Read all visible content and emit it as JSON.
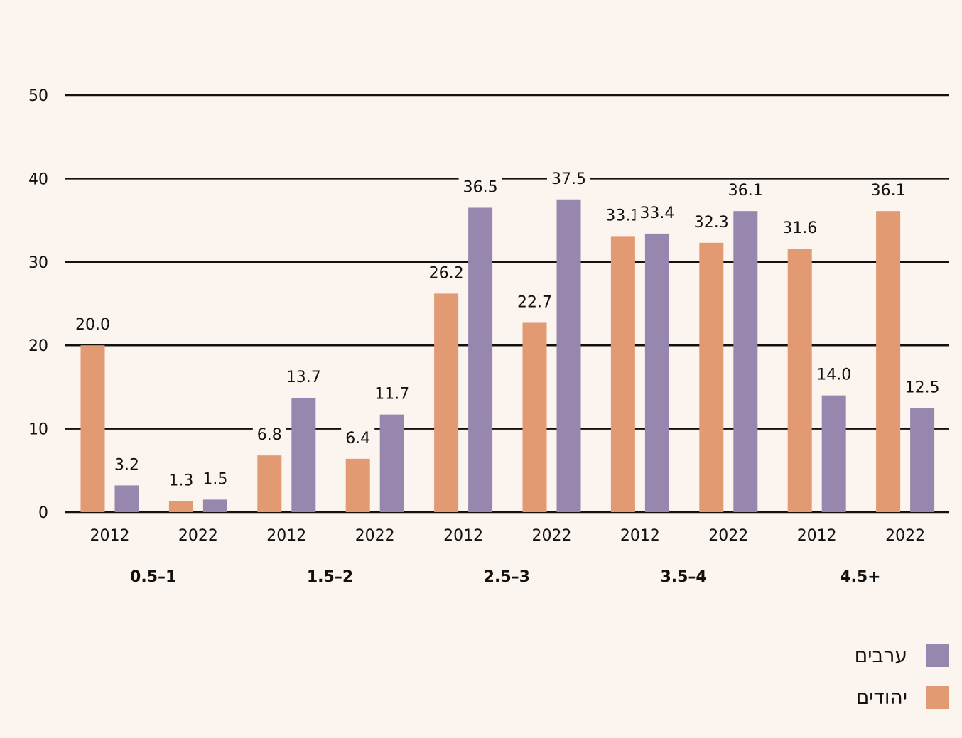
{
  "colors": {
    "jews": "#e19a72",
    "arabs": "#9787af",
    "background": "#fcf4ee"
  },
  "chart_data": {
    "type": "bar",
    "ylim": [
      0,
      50
    ],
    "yticks": [
      0,
      10,
      20,
      30,
      40,
      50
    ],
    "grid": true,
    "legend_position": "bottom-right",
    "groups": [
      {
        "label": "0.5–1",
        "years": [
          "2012",
          "2022"
        ]
      },
      {
        "label": "1.5–2",
        "years": [
          "2012",
          "2022"
        ]
      },
      {
        "label": "2.5–3",
        "years": [
          "2012",
          "2022"
        ]
      },
      {
        "label": "3.5–4",
        "years": [
          "2012",
          "2022"
        ]
      },
      {
        "label": "4.5+",
        "years": [
          "2012",
          "2022"
        ]
      }
    ],
    "categories": [
      "2012",
      "2022",
      "2012",
      "2022",
      "2012",
      "2022",
      "2012",
      "2022",
      "2012",
      "2022"
    ],
    "series": [
      {
        "name": "יהודים",
        "color": "#e19a72",
        "values": [
          20.0,
          1.3,
          6.8,
          6.4,
          26.2,
          22.7,
          33.1,
          32.3,
          31.6,
          36.1
        ]
      },
      {
        "name": "ערבים",
        "color": "#9787af",
        "values": [
          3.2,
          1.5,
          13.7,
          11.7,
          36.5,
          37.5,
          33.4,
          36.1,
          14.0,
          12.5
        ]
      }
    ]
  },
  "legend": {
    "arabs": "ערבים",
    "jews": "יהודים"
  }
}
